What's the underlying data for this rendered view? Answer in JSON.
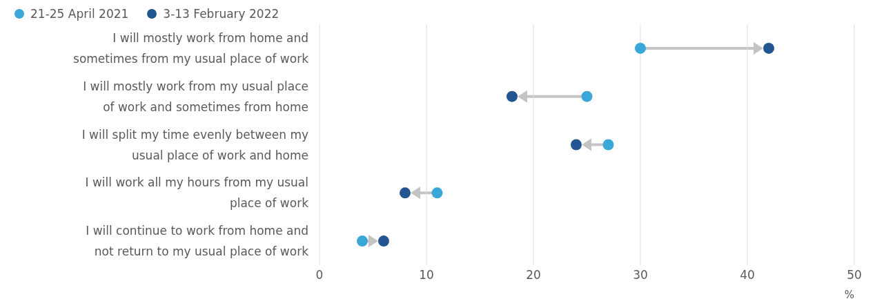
{
  "chart_data": {
    "type": "scatter",
    "orientation": "horizontal",
    "xlabel": "%",
    "categories": [
      "I will mostly work from home and sometimes from my usual place of work",
      "I will mostly work from my usual place of work and sometimes from home",
      "I will split my time evenly between my usual place of work and home",
      "I will work all my hours from my usual place of work",
      "I will continue to work from home and not return to my usual place of work"
    ],
    "series": [
      {
        "name": "21-25 April 2021",
        "color": "#3ba6d8",
        "values": [
          30,
          25,
          27,
          11,
          4
        ]
      },
      {
        "name": "3-13 February 2022",
        "color": "#235592",
        "values": [
          42,
          18,
          24,
          8,
          6
        ]
      }
    ],
    "xlim": [
      0,
      50
    ],
    "xticks": [
      0,
      10,
      20,
      30,
      40,
      50
    ],
    "grid": "x",
    "legend": "top left",
    "marker": "circle"
  }
}
